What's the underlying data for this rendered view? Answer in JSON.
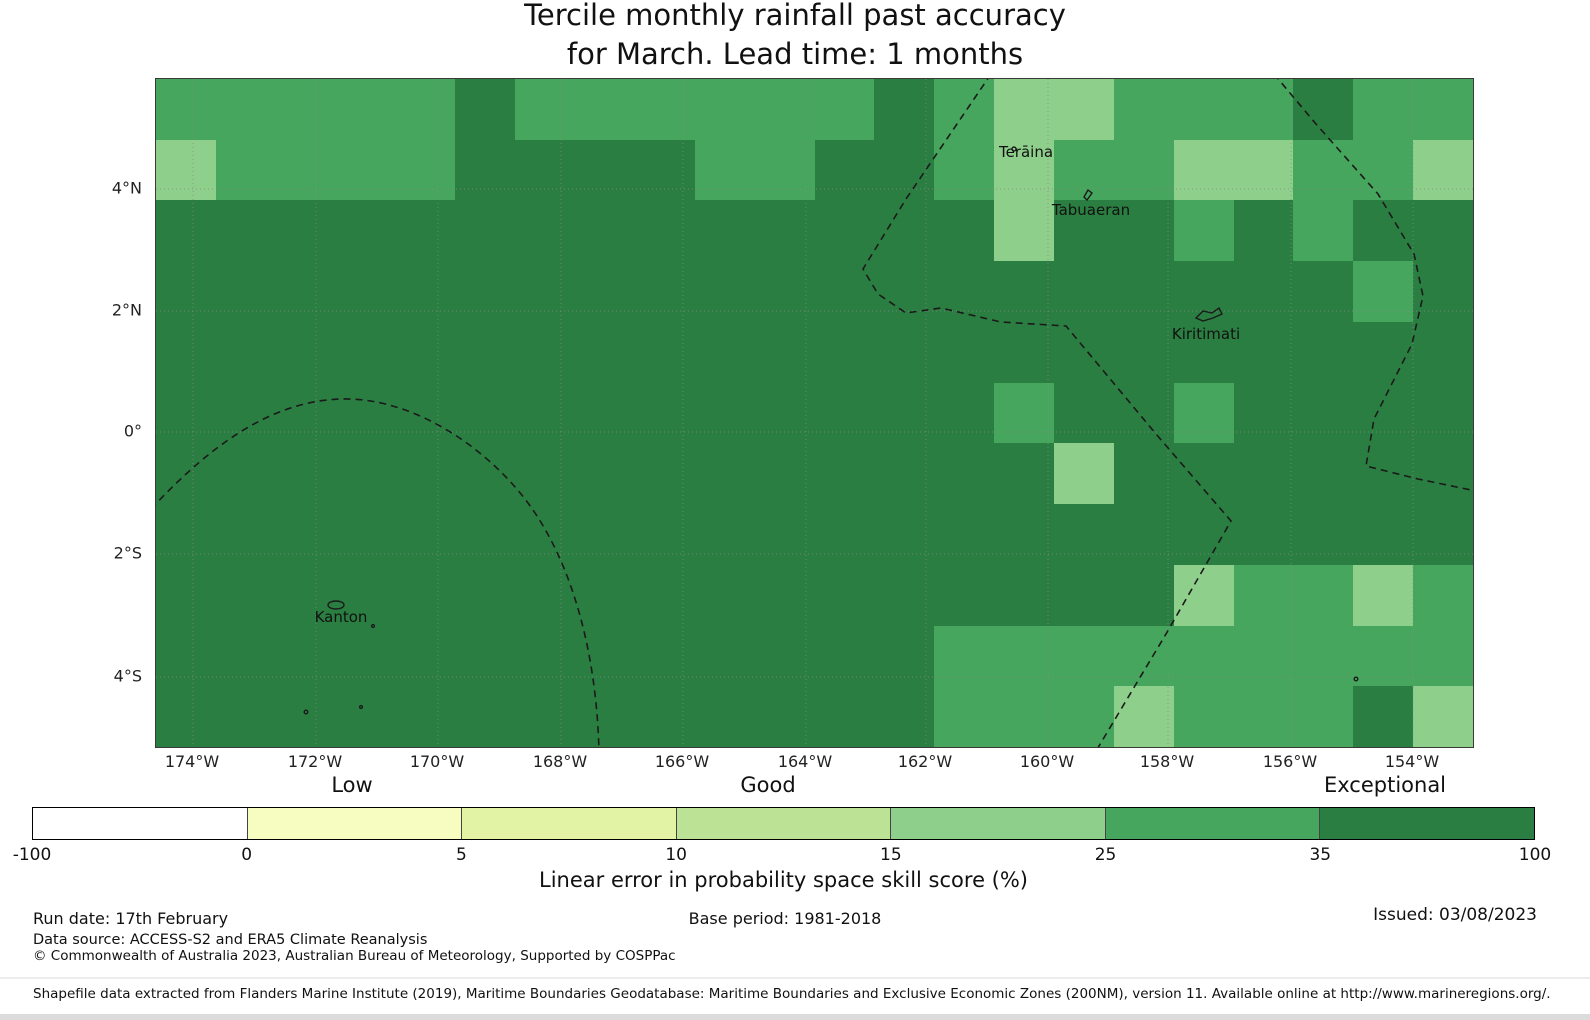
{
  "title": {
    "line1": "Tercile monthly rainfall past accuracy",
    "line2": "for March. Lead time: 1 months"
  },
  "map": {
    "labels": {
      "teraina": "Terāina",
      "tabuaeran": "Tabuaeran",
      "kiritimati": "Kiritimati",
      "kanton": "Kanton"
    },
    "x_ticks": [
      "174°W",
      "172°W",
      "170°W",
      "168°W",
      "166°W",
      "164°W",
      "162°W",
      "160°W",
      "158°W",
      "156°W",
      "154°W"
    ],
    "y_ticks": [
      "4°N",
      "2°N",
      "0°",
      "2°S",
      "4°S"
    ]
  },
  "skill_labels": {
    "low": "Low",
    "good": "Good",
    "exceptional": "Exceptional"
  },
  "colorbar": {
    "title": "Linear error in probability space skill score (%)",
    "tick_labels": [
      "-100",
      "0",
      "5",
      "10",
      "15",
      "25",
      "35",
      "100"
    ],
    "segments": [
      "#ffffff",
      "#f7fcc0",
      "#e2f3a6",
      "#bce395",
      "#8ed08b",
      "#46a65e",
      "#2b7e41"
    ]
  },
  "footer": {
    "run_date": "Run date: 17th February",
    "base_period": "Base period: 1981-2018",
    "issued": "Issued: 03/08/2023",
    "data_source": "Data source: ACCESS-S2 and ERA5 Climate Reanalysis",
    "copyright": "© Commonwealth of Australia 2023, Australian Bureau of Meteorology, Supported by COSPPac",
    "shapefile": "Shapefile data extracted from Flanders Marine Institute (2019), Maritime Boundaries Geodatabase: Maritime Boundaries and Exclusive Economic Zones (200NM), version 11. Available online at http://www.marineregions.org/."
  },
  "chart_data": {
    "type": "heatmap",
    "title": "Tercile monthly rainfall past accuracy for March. Lead time: 1 months",
    "value_label": "Linear error in probability space skill score (%)",
    "x_tick_labels": [
      "174°W",
      "172°W",
      "170°W",
      "168°W",
      "166°W",
      "164°W",
      "162°W",
      "160°W",
      "158°W",
      "156°W",
      "154°W"
    ],
    "y_tick_labels": [
      "4°N",
      "2°N",
      "0°",
      "2°S",
      "4°S"
    ],
    "lon_range": [
      "174.6°W",
      "153.0°W"
    ],
    "lat_range": [
      "5.8°N",
      "5.2°S"
    ],
    "legend_bins": [
      "-100–0 Low",
      "0–5",
      "5–10",
      "10–15",
      "15–25",
      "25–35",
      "35–100 Exceptional"
    ],
    "bins": [
      {
        "min": -100,
        "max": 0,
        "color": "#ffffff"
      },
      {
        "min": 0,
        "max": 5,
        "color": "#f7fcc0"
      },
      {
        "min": 5,
        "max": 10,
        "color": "#e2f3a6"
      },
      {
        "min": 10,
        "max": 15,
        "color": "#bce395"
      },
      {
        "min": 15,
        "max": 25,
        "color": "#8ed08b"
      },
      {
        "min": 25,
        "max": 35,
        "color": "#46a65e"
      },
      {
        "min": 35,
        "max": 100,
        "color": "#2b7e41"
      }
    ],
    "grid_note": "Approximate 1°×1° cells, rows north to south (5.8°N–5.2°S), cols west to east (174.6°W–153°W); values are representative skill-score % per bin read from the map colours",
    "grid": [
      [
        30,
        30,
        30,
        30,
        30,
        50,
        30,
        30,
        30,
        30,
        30,
        30,
        50,
        30,
        20,
        20,
        30,
        30,
        30,
        50,
        30,
        30
      ],
      [
        20,
        30,
        30,
        30,
        30,
        50,
        50,
        50,
        50,
        30,
        30,
        50,
        50,
        30,
        20,
        30,
        30,
        20,
        20,
        30,
        30,
        20
      ],
      [
        50,
        50,
        50,
        50,
        50,
        50,
        50,
        50,
        50,
        50,
        50,
        50,
        50,
        50,
        20,
        50,
        50,
        30,
        50,
        30,
        50,
        50
      ],
      [
        50,
        50,
        50,
        50,
        50,
        50,
        50,
        50,
        50,
        50,
        50,
        50,
        50,
        50,
        50,
        50,
        50,
        50,
        50,
        50,
        30,
        50
      ],
      [
        50,
        50,
        50,
        50,
        50,
        50,
        50,
        50,
        50,
        50,
        50,
        50,
        50,
        50,
        50,
        50,
        50,
        50,
        50,
        50,
        50,
        50
      ],
      [
        50,
        50,
        50,
        50,
        50,
        50,
        50,
        50,
        50,
        50,
        50,
        50,
        50,
        50,
        30,
        50,
        50,
        30,
        50,
        50,
        50,
        50
      ],
      [
        50,
        50,
        50,
        50,
        50,
        50,
        50,
        50,
        50,
        50,
        50,
        50,
        50,
        50,
        50,
        20,
        50,
        50,
        50,
        50,
        50,
        50
      ],
      [
        50,
        50,
        50,
        50,
        50,
        50,
        50,
        50,
        50,
        50,
        50,
        50,
        50,
        50,
        50,
        50,
        50,
        50,
        50,
        50,
        50,
        50
      ],
      [
        50,
        50,
        50,
        50,
        50,
        50,
        50,
        50,
        50,
        50,
        50,
        50,
        50,
        50,
        50,
        50,
        50,
        20,
        30,
        30,
        20,
        30
      ],
      [
        50,
        50,
        50,
        50,
        50,
        50,
        50,
        50,
        50,
        50,
        50,
        50,
        50,
        30,
        30,
        30,
        30,
        30,
        30,
        30,
        30,
        30
      ],
      [
        50,
        50,
        50,
        50,
        50,
        50,
        50,
        50,
        50,
        50,
        50,
        50,
        50,
        30,
        30,
        30,
        20,
        30,
        30,
        30,
        50,
        20
      ]
    ]
  }
}
